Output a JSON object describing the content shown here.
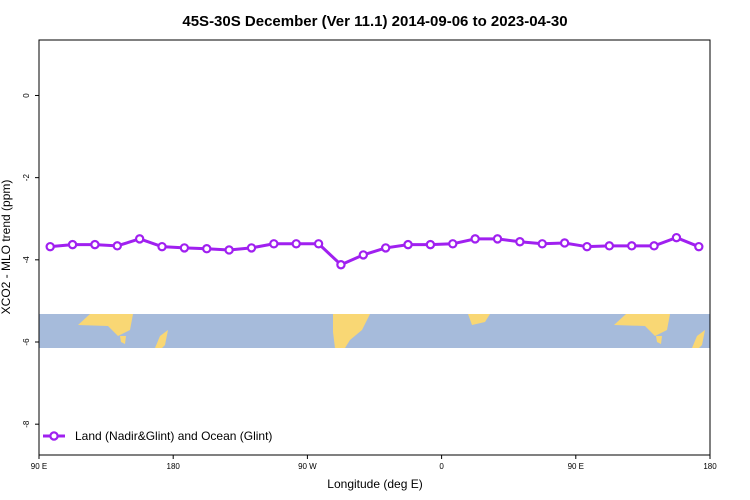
{
  "chart_data": {
    "type": "line",
    "title": "45S-30S December (Ver 11.1)   2014-09-06 to 2023-04-30",
    "x_label": "Longitude (deg E)",
    "y_label": "XCO2 - MLO trend (ppm)",
    "x": [
      97.5,
      112.5,
      127.5,
      142.5,
      157.5,
      172.5,
      187.5,
      202.5,
      217.5,
      232.5,
      247.5,
      262.5,
      277.5,
      292.5,
      307.5,
      322.5,
      337.5,
      352.5,
      367.5,
      382.5,
      397.5,
      412.5,
      427.5,
      442.5,
      457.5,
      472.5,
      487.5,
      502.5,
      517.5,
      532.5
    ],
    "series": [
      {
        "name": "Land (Nadir&Glint) and Ocean (Glint)",
        "color": "#a020f0",
        "values": [
          -3.68,
          -3.63,
          -3.63,
          -3.66,
          -3.49,
          -3.68,
          -3.71,
          -3.73,
          -3.76,
          -3.71,
          -3.61,
          -3.61,
          -3.61,
          -4.12,
          -3.88,
          -3.71,
          -3.63,
          -3.63,
          -3.61,
          -3.49,
          -3.49,
          -3.56,
          -3.61,
          -3.59,
          -3.68,
          -3.66,
          -3.66,
          -3.66,
          -3.46,
          -3.68
        ]
      }
    ],
    "xlim": [
      90,
      540
    ],
    "xticks": [
      {
        "value": 90,
        "label": "90 E"
      },
      180,
      {
        "value": 270,
        "label": "90 W"
      },
      {
        "value": 360,
        "label": "0"
      },
      {
        "value": 450,
        "label": "90 E"
      },
      {
        "value": 540,
        "label": "180"
      }
    ],
    "ylim": [
      -8.75,
      1.35
    ],
    "yticks": [
      0,
      -2,
      -4,
      -6,
      -8
    ],
    "legend": "bottom-left"
  }
}
